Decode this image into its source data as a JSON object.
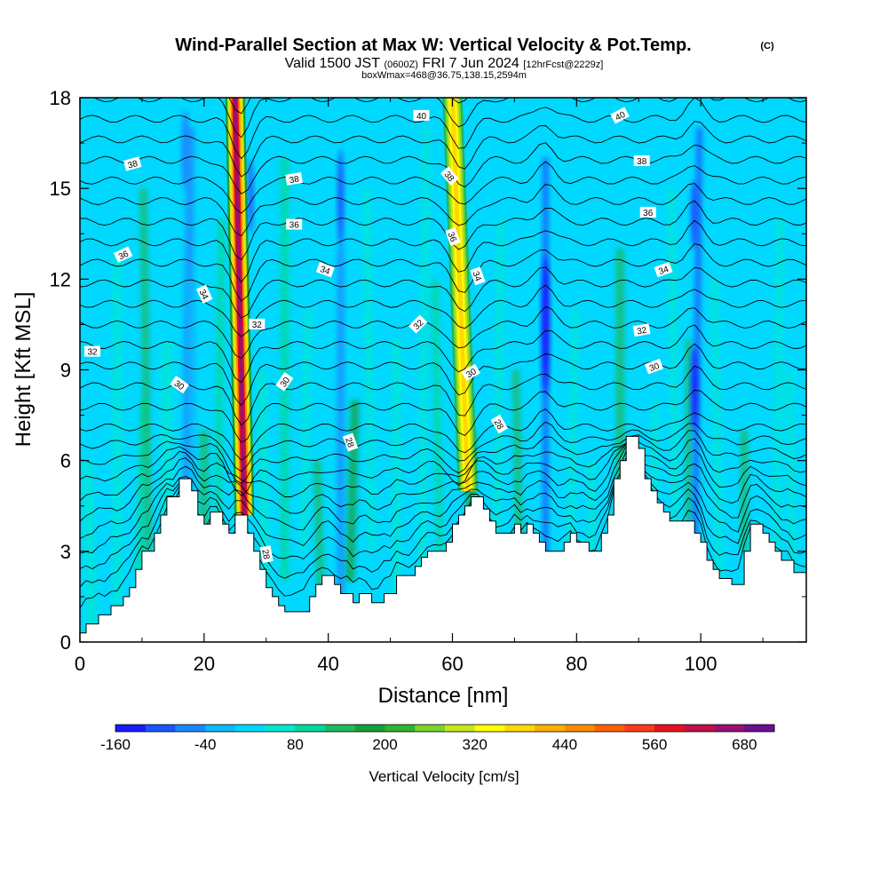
{
  "chart_data": {
    "type": "heatmap",
    "title": "Wind-Parallel Section at Max W: Vertical Velocity & Pot.Temp.",
    "title_mark": "(C)",
    "subtitle": {
      "valid": "Valid 1500 JST",
      "utc": "(0600Z)",
      "date": "FRI 7 Jun 2024",
      "forecast": "[12hrFcst@2229z]"
    },
    "box_info": "boxWmax=468@36.75,138.15,2594m",
    "xlabel": "Distance [nm]",
    "ylabel": "Height [Kft MSL]",
    "xlim": [
      0,
      117
    ],
    "ylim": [
      0,
      18
    ],
    "xticks": [
      "0",
      "20",
      "40",
      "60",
      "80",
      "100"
    ],
    "yticks": [
      "0",
      "3",
      "6",
      "9",
      "12",
      "15",
      "18"
    ],
    "colorbar": {
      "label": "Vertical Velocity [cm/s]",
      "tick_labels": [
        "-160",
        "-40",
        "80",
        "200",
        "320",
        "440",
        "560",
        "680"
      ],
      "colors": [
        "#1a1aff",
        "#1a55ff",
        "#1a88ff",
        "#10b8ff",
        "#00d8ff",
        "#00e8d0",
        "#00d89a",
        "#1eb85e",
        "#14a03a",
        "#2eb42e",
        "#7cd22a",
        "#c8e61e",
        "#ffff00",
        "#ffd800",
        "#ffb000",
        "#ff8c00",
        "#ff6000",
        "#ff3a1a",
        "#e8101e",
        "#c0104a",
        "#9a1070",
        "#6a1090"
      ]
    },
    "terrain_kft": [
      [
        0,
        0.3
      ],
      [
        1,
        0.3
      ],
      [
        1,
        0.6
      ],
      [
        3,
        0.6
      ],
      [
        3,
        0.9
      ],
      [
        5,
        0.9
      ],
      [
        5,
        1.2
      ],
      [
        7,
        1.2
      ],
      [
        7,
        1.5
      ],
      [
        8,
        1.5
      ],
      [
        8,
        1.8
      ],
      [
        9,
        1.8
      ],
      [
        9,
        2.4
      ],
      [
        10,
        2.4
      ],
      [
        10,
        3.0
      ],
      [
        12,
        3.0
      ],
      [
        12,
        3.6
      ],
      [
        13,
        3.6
      ],
      [
        13,
        4.2
      ],
      [
        14,
        4.2
      ],
      [
        14,
        4.8
      ],
      [
        16,
        4.8
      ],
      [
        16,
        5.4
      ],
      [
        18,
        5.4
      ],
      [
        18,
        5.0
      ],
      [
        19,
        5.0
      ],
      [
        19,
        4.2
      ],
      [
        20,
        4.2
      ],
      [
        20,
        3.9
      ],
      [
        21,
        3.9
      ],
      [
        21,
        4.3
      ],
      [
        23,
        4.3
      ],
      [
        23,
        3.9
      ],
      [
        24,
        3.9
      ],
      [
        24,
        3.6
      ],
      [
        25,
        3.6
      ],
      [
        25,
        4.2
      ],
      [
        27,
        4.2
      ],
      [
        27,
        3.6
      ],
      [
        28,
        3.6
      ],
      [
        28,
        3.0
      ],
      [
        29,
        3.0
      ],
      [
        29,
        2.4
      ],
      [
        30,
        2.4
      ],
      [
        30,
        1.8
      ],
      [
        31,
        1.8
      ],
      [
        31,
        1.5
      ],
      [
        32,
        1.5
      ],
      [
        32,
        1.2
      ],
      [
        33,
        1.2
      ],
      [
        33,
        1.0
      ],
      [
        37,
        1.0
      ],
      [
        37,
        1.5
      ],
      [
        38,
        1.5
      ],
      [
        38,
        1.9
      ],
      [
        39,
        1.9
      ],
      [
        39,
        2.2
      ],
      [
        41,
        2.2
      ],
      [
        41,
        1.9
      ],
      [
        42,
        1.9
      ],
      [
        42,
        1.6
      ],
      [
        44,
        1.6
      ],
      [
        44,
        1.3
      ],
      [
        45,
        1.3
      ],
      [
        45,
        1.6
      ],
      [
        47,
        1.6
      ],
      [
        47,
        1.3
      ],
      [
        49,
        1.3
      ],
      [
        49,
        1.6
      ],
      [
        51,
        1.6
      ],
      [
        51,
        2.2
      ],
      [
        54,
        2.2
      ],
      [
        54,
        2.5
      ],
      [
        55,
        2.5
      ],
      [
        55,
        2.8
      ],
      [
        56,
        2.8
      ],
      [
        56,
        3.0
      ],
      [
        59,
        3.0
      ],
      [
        59,
        3.3
      ],
      [
        60,
        3.3
      ],
      [
        60,
        3.9
      ],
      [
        61,
        3.9
      ],
      [
        61,
        4.2
      ],
      [
        62,
        4.2
      ],
      [
        62,
        4.5
      ],
      [
        63,
        4.5
      ],
      [
        63,
        4.8
      ],
      [
        65,
        4.8
      ],
      [
        65,
        4.4
      ],
      [
        66,
        4.4
      ],
      [
        66,
        4.0
      ],
      [
        67,
        4.0
      ],
      [
        67,
        3.6
      ],
      [
        70,
        3.6
      ],
      [
        70,
        3.9
      ],
      [
        71,
        3.9
      ],
      [
        71,
        3.6
      ],
      [
        72,
        3.6
      ],
      [
        72,
        3.9
      ],
      [
        73,
        3.9
      ],
      [
        73,
        3.6
      ],
      [
        74,
        3.6
      ],
      [
        74,
        3.3
      ],
      [
        75,
        3.3
      ],
      [
        75,
        3.0
      ],
      [
        78,
        3.0
      ],
      [
        78,
        3.3
      ],
      [
        79,
        3.3
      ],
      [
        79,
        3.6
      ],
      [
        80,
        3.6
      ],
      [
        80,
        3.3
      ],
      [
        82,
        3.3
      ],
      [
        82,
        3.0
      ],
      [
        84,
        3.0
      ],
      [
        84,
        3.6
      ],
      [
        85,
        3.6
      ],
      [
        85,
        4.2
      ],
      [
        86,
        4.2
      ],
      [
        86,
        5.4
      ],
      [
        87,
        5.4
      ],
      [
        87,
        6.0
      ],
      [
        88,
        6.0
      ],
      [
        88,
        6.8
      ],
      [
        90,
        6.8
      ],
      [
        90,
        6.4
      ],
      [
        91,
        6.4
      ],
      [
        91,
        5.4
      ],
      [
        92,
        5.4
      ],
      [
        92,
        5.0
      ],
      [
        93,
        5.0
      ],
      [
        93,
        4.6
      ],
      [
        94,
        4.6
      ],
      [
        94,
        4.3
      ],
      [
        95,
        4.3
      ],
      [
        95,
        4.0
      ],
      [
        99,
        4.0
      ],
      [
        99,
        3.6
      ],
      [
        100,
        3.6
      ],
      [
        100,
        3.3
      ],
      [
        101,
        3.3
      ],
      [
        101,
        2.7
      ],
      [
        102,
        2.7
      ],
      [
        102,
        2.4
      ],
      [
        103,
        2.4
      ],
      [
        103,
        2.1
      ],
      [
        105,
        2.1
      ],
      [
        105,
        1.9
      ],
      [
        107,
        1.9
      ],
      [
        107,
        3.0
      ],
      [
        108,
        3.0
      ],
      [
        108,
        3.9
      ],
      [
        110,
        3.9
      ],
      [
        110,
        3.6
      ],
      [
        111,
        3.6
      ],
      [
        111,
        3.3
      ],
      [
        112,
        3.3
      ],
      [
        112,
        3.0
      ],
      [
        113,
        3.0
      ],
      [
        113,
        2.7
      ],
      [
        115,
        2.7
      ],
      [
        115,
        2.3
      ],
      [
        117,
        2.3
      ]
    ],
    "updraft_cores_cm_s": [
      {
        "x": 25.5,
        "w": 620
      },
      {
        "x": 60.5,
        "w": 320
      },
      {
        "x": 42,
        "w": 120
      },
      {
        "x": 88,
        "w": 120
      }
    ],
    "downdraft_cores_cm_s": [
      {
        "x": 75,
        "w": -160
      },
      {
        "x": 99,
        "w": -160
      },
      {
        "x": 42,
        "w": -120
      },
      {
        "x": 17,
        "w": -100
      }
    ],
    "contour_labels": [
      {
        "text": "40",
        "x": 55,
        "y": 17.4,
        "rot": 0
      },
      {
        "text": "40",
        "x": 87,
        "y": 17.4,
        "rot": -28
      },
      {
        "text": "38",
        "x": 8.5,
        "y": 15.8,
        "rot": -15
      },
      {
        "text": "38",
        "x": 34.5,
        "y": 15.3,
        "rot": -10
      },
      {
        "text": "38",
        "x": 59.5,
        "y": 15.4,
        "rot": 50
      },
      {
        "text": "38",
        "x": 90.5,
        "y": 15.9,
        "rot": 0
      },
      {
        "text": "36",
        "x": 34.5,
        "y": 13.8,
        "rot": 0
      },
      {
        "text": "36",
        "x": 60,
        "y": 13.4,
        "rot": 70
      },
      {
        "text": "36",
        "x": 91.5,
        "y": 14.2,
        "rot": 0
      },
      {
        "text": "36",
        "x": 7,
        "y": 12.8,
        "rot": -25
      },
      {
        "text": "34",
        "x": 20,
        "y": 11.5,
        "rot": 65
      },
      {
        "text": "34",
        "x": 39.5,
        "y": 12.3,
        "rot": 20
      },
      {
        "text": "34",
        "x": 64,
        "y": 12.1,
        "rot": 70
      },
      {
        "text": "34",
        "x": 94,
        "y": 12.3,
        "rot": -20
      },
      {
        "text": "32",
        "x": 2,
        "y": 9.6,
        "rot": 0
      },
      {
        "text": "32",
        "x": 28.5,
        "y": 10.5,
        "rot": 0
      },
      {
        "text": "32",
        "x": 54.5,
        "y": 10.5,
        "rot": -45
      },
      {
        "text": "32",
        "x": 90.5,
        "y": 10.3,
        "rot": -10
      },
      {
        "text": "30",
        "x": 16,
        "y": 8.5,
        "rot": 35
      },
      {
        "text": "30",
        "x": 33,
        "y": 8.6,
        "rot": -55
      },
      {
        "text": "30",
        "x": 63,
        "y": 8.9,
        "rot": -30
      },
      {
        "text": "30",
        "x": 92.5,
        "y": 9.1,
        "rot": -20
      },
      {
        "text": "28",
        "x": 43.5,
        "y": 6.6,
        "rot": 70
      },
      {
        "text": "28",
        "x": 67.5,
        "y": 7.2,
        "rot": 60
      },
      {
        "text": "28",
        "x": 30,
        "y": 2.9,
        "rot": 80
      }
    ]
  }
}
